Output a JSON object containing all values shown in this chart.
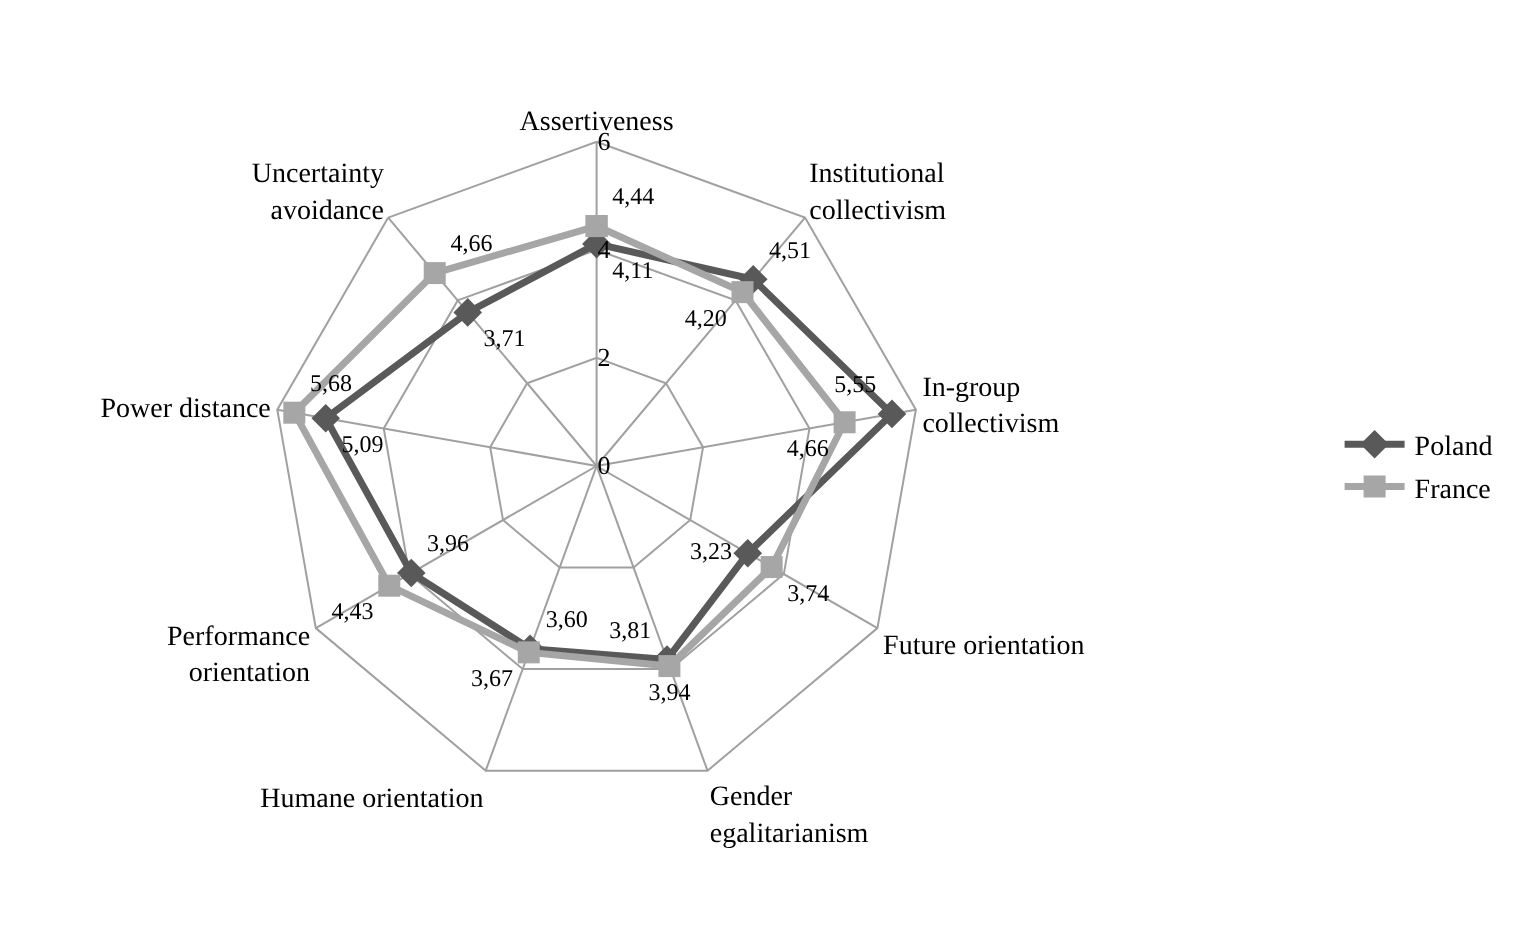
{
  "chart_data": {
    "type": "radar",
    "categories": [
      "Assertiveness",
      "Institutional collectivism",
      "In-group collectivism",
      "Future orientation",
      "Gender egalitarianism",
      "Humane orientation",
      "Performance orientation",
      "Power distance",
      "Uncertainty avoidance"
    ],
    "series": [
      {
        "name": "Poland",
        "color": "#595959",
        "marker": "diamond",
        "values": [
          4.11,
          4.51,
          5.55,
          3.23,
          3.81,
          3.6,
          3.96,
          5.09,
          3.71
        ],
        "value_labels": [
          "4,11",
          "4,51",
          "5,55",
          "3,23",
          "3,81",
          "3,60",
          "3,96",
          "5,09",
          "3,71"
        ]
      },
      {
        "name": "France",
        "color": "#a6a6a6",
        "marker": "square",
        "values": [
          4.44,
          4.2,
          4.66,
          3.74,
          3.94,
          3.67,
          4.43,
          5.68,
          4.66
        ],
        "value_labels": [
          "4,44",
          "4,20",
          "4,66",
          "3,74",
          "3,94",
          "3,67",
          "4,43",
          "5,68",
          "4,66"
        ]
      }
    ],
    "ylim": [
      0,
      6
    ],
    "yticks": [
      0,
      2,
      4,
      6
    ],
    "grid": true,
    "legend": "right"
  }
}
